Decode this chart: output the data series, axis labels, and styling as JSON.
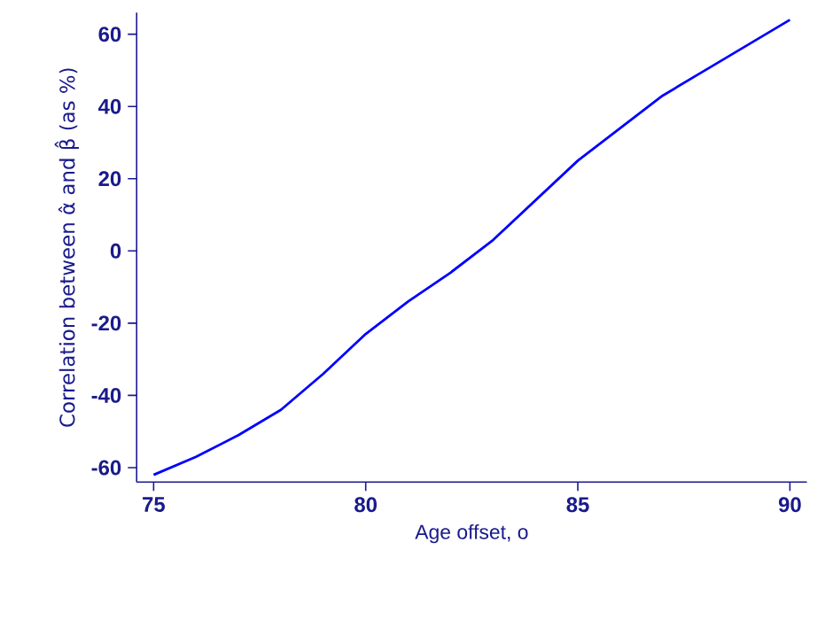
{
  "chart_data": {
    "type": "line",
    "xlabel": "Age offset, o",
    "ylabel": "Correlation between α̂ and β̂ (as %)",
    "x": [
      75,
      76,
      77,
      78,
      79,
      80,
      81,
      82,
      83,
      84,
      85,
      86,
      87,
      88,
      89,
      90
    ],
    "series": [
      {
        "color": "#0000ff",
        "values": [
          -62,
          -57,
          -51,
          -44,
          -34,
          -23,
          -14,
          -6,
          3,
          14,
          25,
          34,
          43,
          50,
          57,
          64
        ]
      }
    ],
    "xlim": [
      74.6,
      90.4
    ],
    "ylim": [
      -64,
      66
    ],
    "xticks": [
      75,
      80,
      85,
      90
    ],
    "yticks": [
      -60,
      -40,
      -20,
      0,
      20,
      40,
      60
    ],
    "marker": "none",
    "line_style": "solid"
  }
}
